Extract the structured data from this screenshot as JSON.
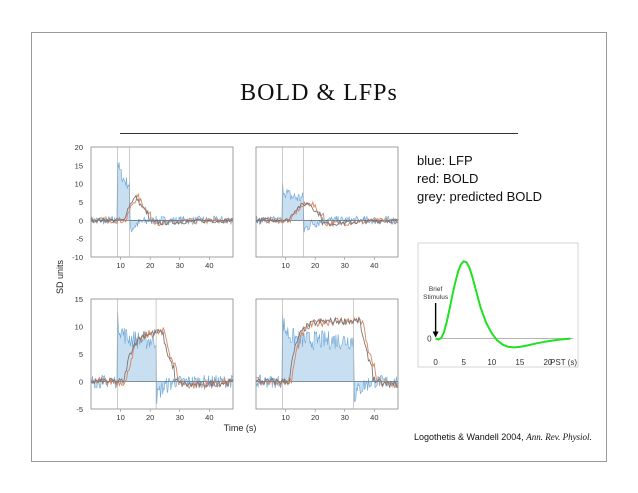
{
  "slide": {
    "title": "BOLD & LFPs",
    "legend": [
      "blue: LFP",
      "red: BOLD",
      "grey: predicted BOLD"
    ],
    "citation_plain": "Logothetis & Wandell 2004, ",
    "citation_journal": "Ann. Rev. Physiol."
  },
  "colors": {
    "lfp_fill": "#c8dff2",
    "lfp_line": "#6da6d6",
    "bold": "#d9835f",
    "predicted": "#777777",
    "hrf": "#22e022"
  },
  "chart_data": [
    {
      "type": "line",
      "panels": "2x2 grid of time series",
      "ylabel": "SD units",
      "xlabel": "Time  (s)",
      "xticks": [
        10,
        20,
        30,
        40
      ],
      "ylim_top": [
        -10,
        20
      ],
      "yticks_top": [
        20,
        15,
        10,
        5,
        0,
        -5,
        -10
      ],
      "ylim_bottom": [
        -5,
        15
      ],
      "yticks_bottom": [
        15,
        10,
        5,
        0,
        -5
      ],
      "xlim": [
        0,
        48
      ],
      "series": [
        {
          "name": "LFP"
        },
        {
          "name": "BOLD"
        },
        {
          "name": "predicted BOLD"
        }
      ],
      "stimulus_windows": [
        [
          9,
          13
        ],
        [
          9,
          16
        ],
        [
          9,
          22
        ],
        [
          9,
          33
        ]
      ]
    },
    {
      "type": "line",
      "title": "",
      "xlabel": "PST (s)",
      "xticks": [
        0,
        5,
        10,
        15,
        20
      ],
      "yticks": [
        0
      ],
      "xlim": [
        -1,
        25
      ],
      "ylim": [
        -1,
        8
      ],
      "annotation": "Brief Stimulus",
      "x": [
        0,
        0.5,
        1,
        1.5,
        2,
        2.5,
        3,
        3.5,
        4,
        4.5,
        5,
        5.5,
        6,
        6.5,
        7,
        7.5,
        8,
        9,
        10,
        11,
        12,
        13,
        14,
        15,
        16,
        18,
        20,
        22,
        24
      ],
      "y": [
        0,
        -0.1,
        0.05,
        0.6,
        1.6,
        2.9,
        4.2,
        5.4,
        6.4,
        7.1,
        7.4,
        7.3,
        6.8,
        6.0,
        5.0,
        4.0,
        3.0,
        1.5,
        0.5,
        -0.2,
        -0.6,
        -0.8,
        -0.85,
        -0.8,
        -0.7,
        -0.45,
        -0.25,
        -0.1,
        0
      ]
    }
  ]
}
